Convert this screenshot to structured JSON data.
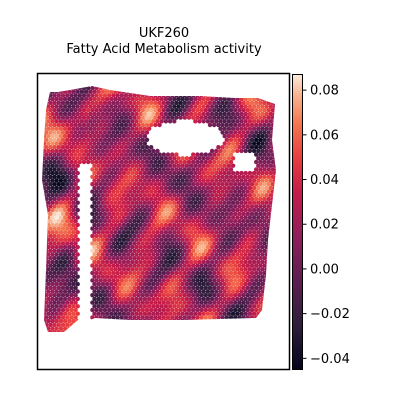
{
  "title_line1": "UKF260",
  "title_line2": "Fatty Acid Metabolism activity",
  "chart_data": {
    "type": "heatmap",
    "subtype": "spatial hexagonal spot map",
    "title": "UKF260 Fatty Acid Metabolism activity",
    "colormap": "rocket",
    "colorbar": {
      "range": [
        -0.045,
        0.087
      ],
      "ticks": [
        -0.04,
        -0.02,
        0.0,
        0.02,
        0.04,
        0.06,
        0.08
      ],
      "tick_labels": [
        "−0.04",
        "−0.02",
        "0.00",
        "0.02",
        "0.04",
        "0.06",
        "0.08"
      ]
    },
    "axes_visible": false,
    "grid": false,
    "notes_value_range_observed": [
      -0.04,
      0.085
    ]
  }
}
